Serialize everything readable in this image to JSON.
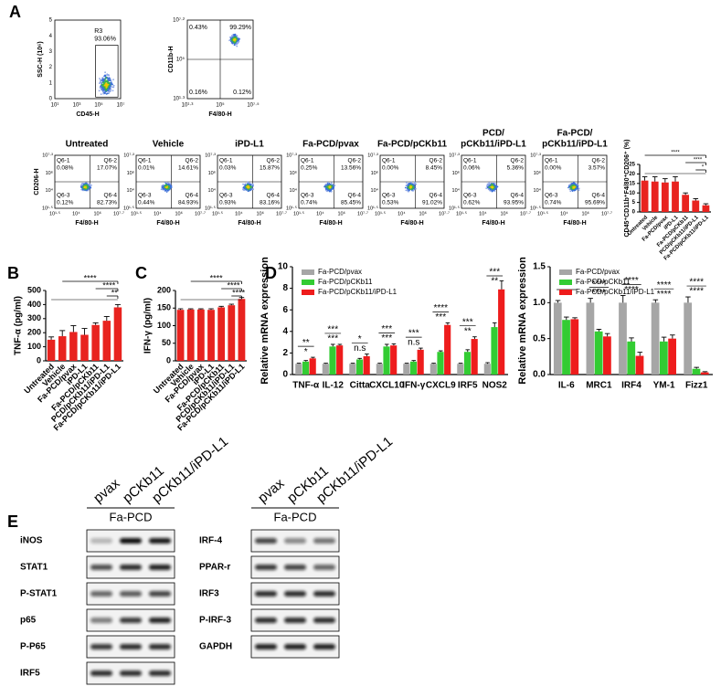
{
  "panel_labels": [
    "A",
    "B",
    "C",
    "D",
    "E"
  ],
  "flow_gate": {
    "y_label": "SSC-H (10⁶)",
    "x_label": "CD45-H",
    "gate": "R3",
    "percent": "93.06%",
    "x_ticks": [
      "10¹",
      "10³",
      "10⁵",
      "10⁷"
    ],
    "y_ticks": [
      "0",
      "1",
      "2",
      "3",
      "4",
      "5"
    ]
  },
  "flow_cd11b": {
    "y_label": "CD11b-H",
    "x_label": "F4/80-H",
    "quadrants": [
      "0.43%",
      "99.29%",
      "0.16%",
      "0.12%"
    ],
    "x_ticks": [
      "10¹·³",
      "10⁵",
      "10⁷·⁵"
    ],
    "y_ticks": [
      "10¹·³",
      "10⁵",
      "10⁷·²"
    ]
  },
  "flow_cd206": {
    "y_label": "CD206-H",
    "x_label": "F4/80-H",
    "x_ticks": [
      "10¹·⁵",
      "10⁴",
      "10⁶",
      "10⁷·⁷"
    ],
    "y_ticks": [
      "10¹·⁵",
      "10⁴",
      "10⁶",
      "10⁷·³"
    ],
    "quadrant_names": [
      "Q6-1",
      "Q6-2",
      "Q6-3",
      "Q6-4"
    ],
    "plots": [
      {
        "title": [
          "Untreated"
        ],
        "quadrants": [
          "0.08%",
          "17.07%",
          "0.12%",
          "82.73%"
        ]
      },
      {
        "title": [
          "Vehicle"
        ],
        "quadrants": [
          "0.01%",
          "14.61%",
          "0.44%",
          "84.93%"
        ]
      },
      {
        "title": [
          "iPD-L1"
        ],
        "quadrants": [
          "0.03%",
          "15.87%",
          "0.93%",
          "83.16%"
        ]
      },
      {
        "title": [
          "Fa-PCD/pvax"
        ],
        "quadrants": [
          "0.25%",
          "13.56%",
          "0.74%",
          "85.45%"
        ]
      },
      {
        "title": [
          "Fa-PCD/pCKb11"
        ],
        "quadrants": [
          "0.00%",
          "8.45%",
          "0.53%",
          "91.02%"
        ]
      },
      {
        "title": [
          "PCD/",
          "pCKb11/iPD-L1"
        ],
        "quadrants": [
          "0.06%",
          "5.36%",
          "0.62%",
          "93.95%"
        ]
      },
      {
        "title": [
          "Fa-PCD/",
          "pCKb11/iPD-L1"
        ],
        "quadrants": [
          "0.00%",
          "3.57%",
          "0.74%",
          "95.69%"
        ]
      }
    ]
  },
  "chart_data": [
    {
      "type": "bar",
      "y_label": "CD45⁺CD11b⁺F4/80⁺CD206⁺ (%)",
      "categories": [
        "Untreated",
        "Vehicle",
        "Fa-PCD/pvax",
        "iPD-L1",
        "Fa-PCD/pCKb11",
        "PCD/pCKb11/iPD-L1",
        "Fa-PCD/pCKb11/iPD-L1"
      ],
      "values": [
        16.5,
        16,
        15.5,
        16,
        9,
        6,
        3.5
      ],
      "errors": [
        2,
        2.5,
        2,
        2.5,
        1,
        1,
        0.8
      ],
      "color": "#e8231f",
      "ylim": [
        0,
        25
      ],
      "yticks": [
        0,
        5,
        10,
        15,
        20,
        25
      ],
      "annotations": [
        "****",
        "****",
        "*"
      ]
    },
    {
      "type": "bar",
      "y_label": "TNF-α (pg/ml)",
      "categories": [
        "Untreated",
        "Vehicle",
        "Fa-PCD/pvax",
        "iPD-L1",
        "Fa-PCD/pCKb11",
        "PCD/pCKb11/iPD-L1",
        "Fa-PCD/pCKb11/iPD-L1"
      ],
      "values": [
        150,
        175,
        205,
        185,
        255,
        285,
        380
      ],
      "errors": [
        20,
        40,
        45,
        45,
        15,
        30,
        20
      ],
      "color": "#e8231f",
      "ylim": [
        0,
        500
      ],
      "yticks": [
        0,
        100,
        200,
        300,
        400,
        500
      ],
      "annotations": [
        "****",
        "****",
        "**"
      ]
    },
    {
      "type": "bar",
      "y_label": "IFN-γ (pg/ml)",
      "categories": [
        "Untreated",
        "Vehicle",
        "Fa-PCD/pvax",
        "iPD-L1",
        "Fa-PCD/pCKb11",
        "PCD/pCKb11/iPD-L1",
        "Fa-PCD/pCKb11/iPD-L1"
      ],
      "values": [
        145,
        146,
        146,
        145,
        152,
        158,
        176
      ],
      "errors": [
        3,
        2,
        2,
        3,
        3,
        3,
        4
      ],
      "color": "#e8231f",
      "ylim": [
        0,
        200
      ],
      "yticks": [
        0,
        50,
        100,
        150,
        200
      ],
      "annotations": [
        "****",
        "****",
        "****"
      ]
    },
    {
      "type": "bar",
      "y_label": "Relative mRNA expression",
      "categories": [
        "TNF-α",
        "IL-12",
        "Citta",
        "CXCL10",
        "IFN-γ",
        "CXCL9",
        "IRF5",
        "NOS2"
      ],
      "series": [
        {
          "name": "Fa-PCD/pvax",
          "color": "#a6a6a6",
          "values": [
            1,
            1,
            1,
            1,
            1,
            1,
            1,
            1
          ],
          "errors": [
            0.05,
            0.05,
            0.05,
            0.05,
            0.05,
            0.05,
            0.05,
            0.1
          ]
        },
        {
          "name": "Fa-PCD/pCKb11",
          "color": "#33cc33",
          "values": [
            1.2,
            2.6,
            1.4,
            2.6,
            1.2,
            2.1,
            2.1,
            4.4
          ],
          "errors": [
            0.1,
            0.2,
            0.1,
            0.2,
            0.1,
            0.1,
            0.2,
            0.4
          ]
        },
        {
          "name": "Fa-PCD/pCKb11/iPD-L1",
          "color": "#ee1c1c",
          "values": [
            1.5,
            2.7,
            1.7,
            2.7,
            2.3,
            4.6,
            3.3,
            7.9
          ],
          "errors": [
            0.1,
            0.1,
            0.2,
            0.15,
            0.15,
            0.2,
            0.2,
            0.8
          ]
        }
      ],
      "ylim": [
        0,
        10
      ],
      "yticks": [
        0,
        2,
        4,
        6,
        8,
        10
      ],
      "annotations": [
        "**",
        "*",
        "***",
        "***",
        "*",
        "n.s",
        "***",
        "***",
        "***",
        "n.s",
        "****",
        "***",
        "***",
        "**",
        "***",
        "**"
      ]
    },
    {
      "type": "bar",
      "y_label": "Relative mRNA expression",
      "categories": [
        "IL-6",
        "MRC1",
        "IRF4",
        "YM-1",
        "Fizz1"
      ],
      "series": [
        {
          "name": "Fa-PCD/pvax",
          "color": "#a6a6a6",
          "values": [
            1,
            1,
            1,
            1,
            1
          ],
          "errors": [
            0.03,
            0.06,
            0.1,
            0.04,
            0.08
          ]
        },
        {
          "name": "Fa-PCD/pCKb11",
          "color": "#33cc33",
          "values": [
            0.76,
            0.6,
            0.46,
            0.46,
            0.08
          ],
          "errors": [
            0.04,
            0.03,
            0.05,
            0.06,
            0.02
          ]
        },
        {
          "name": "Fa-PCD/pCKb11/iPD-L1",
          "color": "#ee1c1c",
          "values": [
            0.77,
            0.53,
            0.26,
            0.5,
            0.03
          ],
          "errors": [
            0.02,
            0.04,
            0.05,
            0.05,
            0.01
          ]
        }
      ],
      "ylim": [
        0,
        1.5
      ],
      "yticks": [
        {
          "value": 0,
          "label": "0.0"
        },
        0.5,
        {
          "value": 1,
          "label": "1.0"
        },
        1.5
      ],
      "annotations": [
        "**",
        "**",
        "****",
        "****",
        "****",
        "****",
        "****",
        "****",
        "****",
        "****"
      ]
    }
  ],
  "blots": {
    "lanes": [
      "pvax",
      "pCKb11",
      "pCKb11/iPD-L1"
    ],
    "group": "Fa-PCD",
    "left_rows": [
      "iNOS",
      "STAT1",
      "P-STAT1",
      "p65",
      "P-P65",
      "IRF5"
    ],
    "right_rows": [
      "IRF-4",
      "PPAR-r",
      "IRF3",
      "P-IRF-3",
      "GAPDH"
    ]
  }
}
